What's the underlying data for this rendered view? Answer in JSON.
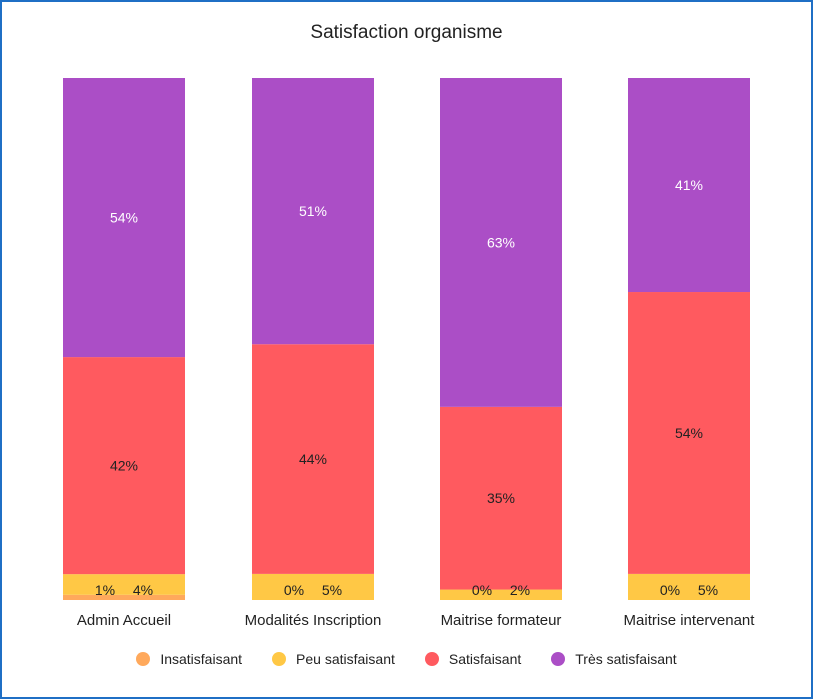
{
  "chart_data": {
    "type": "bar",
    "stacked": true,
    "title": "Satisfaction organisme",
    "categories": [
      "Admin Accueil",
      "Modalités Inscription",
      "Maitrise formateur",
      "Maitrise intervenant"
    ],
    "series": [
      {
        "name": "Insatisfaisant",
        "color": "#ffa95c",
        "values": [
          1,
          0,
          0,
          0
        ]
      },
      {
        "name": "Peu satisfaisant",
        "color": "#ffc845",
        "values": [
          4,
          5,
          2,
          5
        ]
      },
      {
        "name": "Satisfaisant",
        "color": "#ff5a5f",
        "values": [
          42,
          44,
          35,
          54
        ]
      },
      {
        "name": "Très satisfaisant",
        "color": "#ab4ec6",
        "values": [
          54,
          51,
          63,
          41
        ]
      }
    ],
    "value_suffix": "%",
    "legend_position": "bottom",
    "grid": false
  }
}
